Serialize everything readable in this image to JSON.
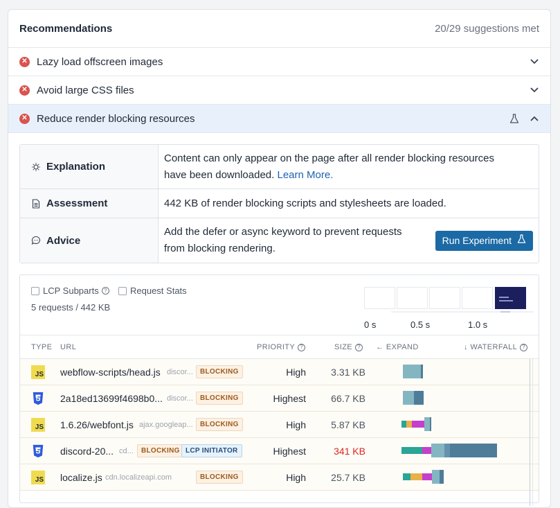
{
  "header": {
    "title": "Recommendations",
    "met": "20/29 suggestions met"
  },
  "recommendations": [
    {
      "label": "Lazy load offscreen images",
      "status": "fail",
      "expanded": false
    },
    {
      "label": "Avoid large CSS files",
      "status": "fail",
      "expanded": false
    },
    {
      "label": "Reduce render blocking resources",
      "status": "fail",
      "expanded": true
    }
  ],
  "detail": {
    "explanation_key": "Explanation",
    "explanation_line1": "Content can only appear on the page after all render blocking resources",
    "explanation_line2": "have been downloaded.",
    "learn_more": "Learn More.",
    "assessment_key": "Assessment",
    "assessment_value": "442 KB of render blocking scripts and stylesheets are loaded.",
    "advice_key": "Advice",
    "advice_line1": "Add the defer or async keyword to prevent requests",
    "advice_line2": "from blocking rendering.",
    "run_button": "Run Experiment"
  },
  "waterfall": {
    "lcp_subparts": "LCP Subparts",
    "request_stats": "Request Stats",
    "summary": "5 requests / 442 KB",
    "timeline": [
      "0 s",
      "0.5 s",
      "1.0 s"
    ],
    "columns": {
      "type": "TYPE",
      "url": "URL",
      "priority": "PRIORITY",
      "size": "SIZE",
      "expand": "← EXPAND",
      "waterfall": "↓ WATERFALL"
    },
    "rows": [
      {
        "type": "JS",
        "file": "webflow-scripts/head.js",
        "domain": "discor...",
        "badges": [
          "BLOCKING"
        ],
        "priority": "High",
        "size": "3.31 KB"
      },
      {
        "type": "CSS",
        "file": "2a18ed13699f4698b0...",
        "domain": "discor...",
        "badges": [
          "BLOCKING"
        ],
        "priority": "Highest",
        "size": "66.7 KB"
      },
      {
        "type": "JS",
        "file": "1.6.26/webfont.js",
        "domain": "ajax.googleap...",
        "badges": [
          "BLOCKING"
        ],
        "priority": "High",
        "size": "5.87 KB"
      },
      {
        "type": "CSS",
        "file": "discord-20...",
        "domain": "cd...",
        "badges": [
          "BLOCKING",
          "LCP INITIATOR"
        ],
        "priority": "Highest",
        "size": "341 KB"
      },
      {
        "type": "JS",
        "file": "localize.js",
        "domain": "cdn.localizeapi.com",
        "badges": [
          "BLOCKING"
        ],
        "priority": "High",
        "size": "25.7 KB"
      }
    ]
  },
  "colors": {
    "error": "#d9534f",
    "accent": "#1b6aa5",
    "link": "#1c63b0",
    "size_warning": "#dc2626"
  }
}
